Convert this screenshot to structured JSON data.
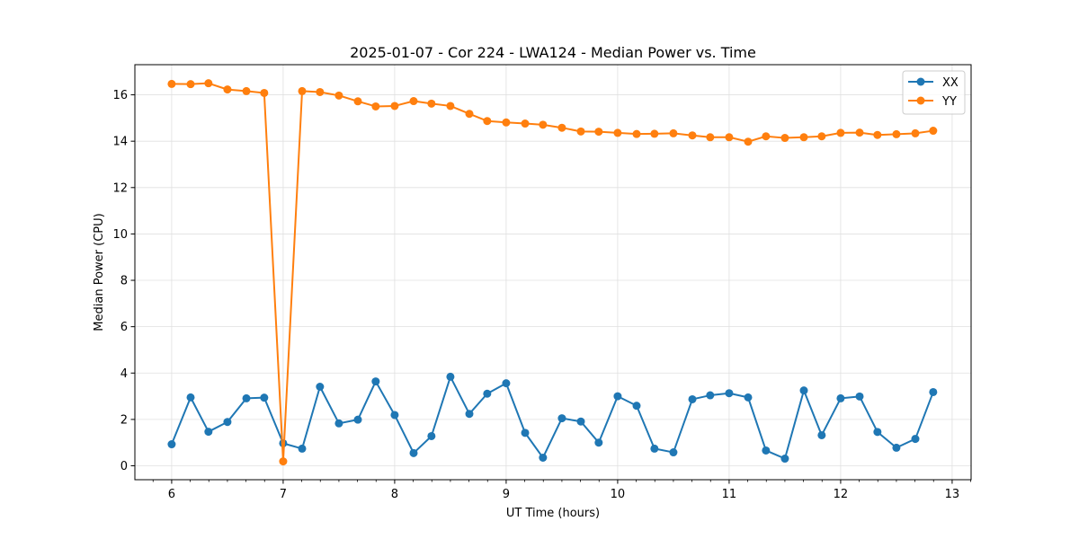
{
  "chart_data": {
    "type": "line",
    "title": "2025-01-07 - Cor 224 - LWA124 - Median Power vs. Time",
    "xlabel": "UT Time (hours)",
    "ylabel": "Median Power (CPU)",
    "xlim": [
      5.67,
      13.17
    ],
    "ylim": [
      -0.6,
      17.3
    ],
    "xticks": [
      6,
      7,
      8,
      9,
      10,
      11,
      12,
      13
    ],
    "yticks": [
      0,
      2,
      4,
      6,
      8,
      10,
      12,
      14,
      16
    ],
    "grid": true,
    "legend_position": "top-right",
    "x": [
      6.0,
      6.17,
      6.33,
      6.5,
      6.67,
      6.83,
      7.0,
      7.17,
      7.33,
      7.5,
      7.67,
      7.83,
      8.0,
      8.17,
      8.33,
      8.5,
      8.67,
      8.83,
      9.0,
      9.17,
      9.33,
      9.5,
      9.67,
      9.83,
      10.0,
      10.17,
      10.33,
      10.5,
      10.67,
      10.83,
      11.0,
      11.17,
      11.33,
      11.5,
      11.67,
      11.83,
      12.0,
      12.17,
      12.33,
      12.5,
      12.67,
      12.83
    ],
    "series": [
      {
        "name": "XX",
        "color": "#1f77b4",
        "values": [
          0.93,
          2.95,
          1.47,
          1.89,
          2.91,
          2.94,
          0.97,
          0.74,
          3.41,
          1.83,
          1.99,
          3.64,
          2.19,
          0.55,
          1.28,
          3.84,
          2.24,
          3.11,
          3.56,
          1.42,
          0.35,
          2.05,
          1.91,
          1.0,
          3.0,
          2.59,
          0.74,
          0.58,
          2.87,
          3.04,
          3.13,
          2.95,
          0.66,
          0.31,
          3.25,
          1.32,
          2.91,
          2.99,
          1.46,
          0.78,
          1.16,
          3.18
        ]
      },
      {
        "name": "YY",
        "color": "#ff7f0e",
        "values": [
          16.47,
          16.46,
          16.5,
          16.23,
          16.16,
          16.08,
          0.19,
          16.16,
          16.12,
          15.97,
          15.72,
          15.5,
          15.52,
          15.73,
          15.62,
          15.52,
          15.18,
          14.87,
          14.81,
          14.76,
          14.71,
          14.58,
          14.42,
          14.41,
          14.36,
          14.31,
          14.32,
          14.34,
          14.25,
          14.17,
          14.17,
          13.98,
          14.21,
          14.14,
          14.17,
          14.21,
          14.36,
          14.37,
          14.27,
          14.3,
          14.34,
          14.45
        ]
      }
    ]
  }
}
